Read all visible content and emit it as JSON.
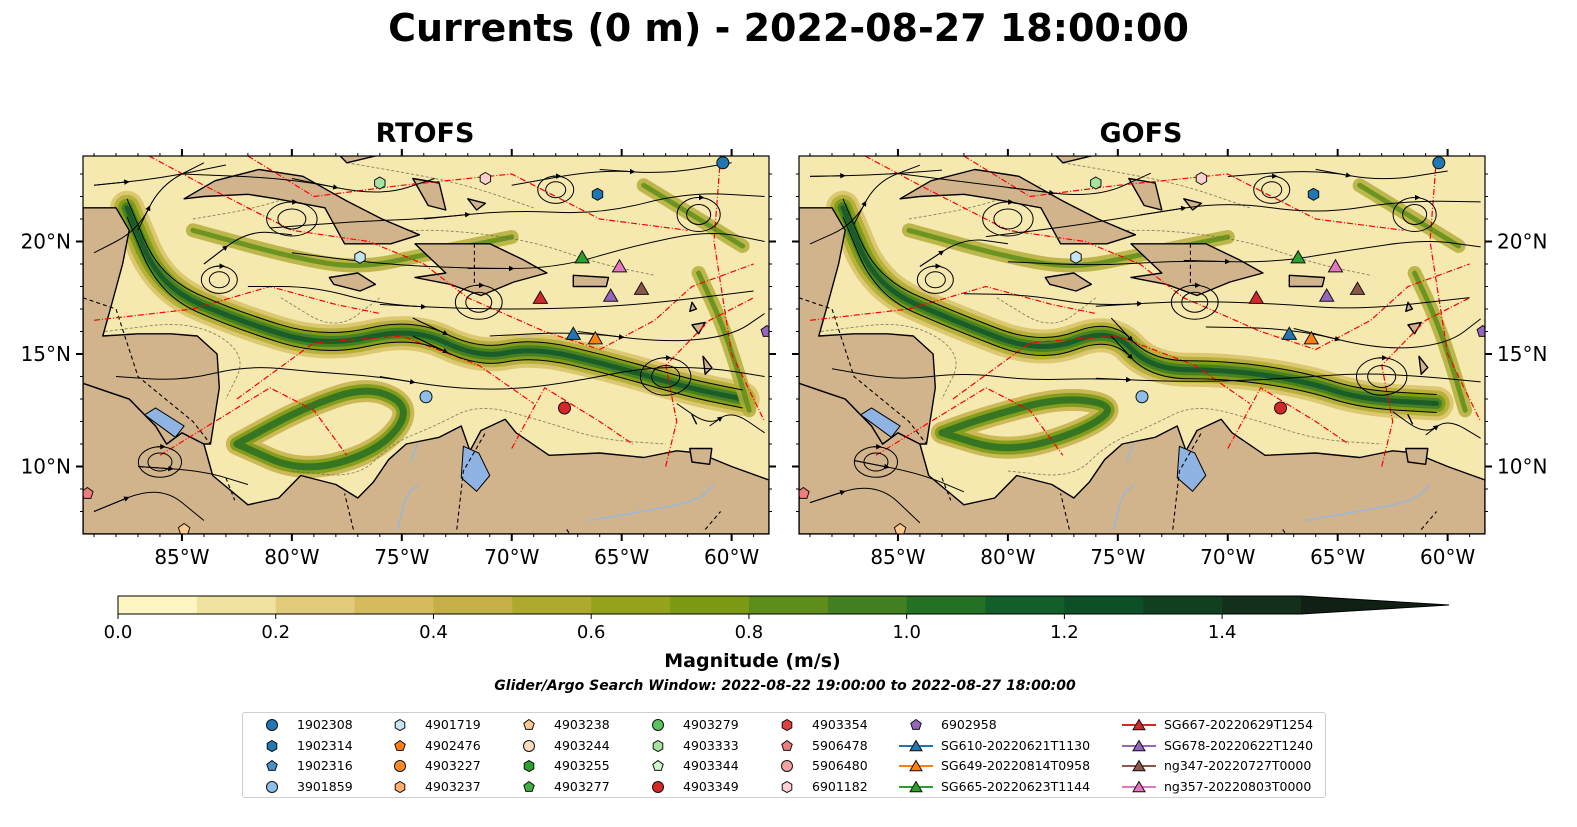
{
  "title": "Currents (0 m) - 2022-08-27 18:00:00",
  "panels": [
    {
      "title": "RTOFS"
    },
    {
      "title": "GOFS"
    }
  ],
  "axes": {
    "lon_ticks": [
      "85°W",
      "80°W",
      "75°W",
      "70°W",
      "65°W",
      "60°W"
    ],
    "lon_values": [
      -85,
      -80,
      -75,
      -70,
      -65,
      -60
    ],
    "lat_ticks": [
      "20°N",
      "15°N",
      "10°N"
    ],
    "lat_values": [
      20,
      15,
      10
    ],
    "lon_range": [
      -89.5,
      -58.3
    ],
    "lat_range": [
      7,
      23.8
    ]
  },
  "colorbar": {
    "label": "Magnitude (m/s)",
    "tick_labels": [
      "0.0",
      "0.2",
      "0.4",
      "0.6",
      "0.8",
      "1.0",
      "1.2",
      "1.4"
    ],
    "min": 0,
    "max": 1.5,
    "step": 0.1,
    "extend": "max",
    "colors": [
      "#fdf6c3",
      "#f1e2a0",
      "#e2cc7c",
      "#d5bb5c",
      "#c4b046",
      "#aeaa2e",
      "#95a31c",
      "#7c9a14",
      "#5e8e1a",
      "#427f20",
      "#247024",
      "#125f2a",
      "#0d4f26",
      "#10401f",
      "#12301a",
      "#112015"
    ]
  },
  "search_window": "Glider/Argo Search Window: 2022-08-22 19:00:00 to 2022-08-27 18:00:00",
  "legend": [
    {
      "label": "1902308",
      "marker": "circle",
      "color": "#1f77b4"
    },
    {
      "label": "1902314",
      "marker": "hexagon",
      "color": "#1f77b4"
    },
    {
      "label": "1902316",
      "marker": "pentagon",
      "color": "#4a90c8"
    },
    {
      "label": "3901859",
      "marker": "circle",
      "color": "#8fbfe8"
    },
    {
      "label": "4901719",
      "marker": "hexagon",
      "color": "#c6e4f7"
    },
    {
      "label": "4902476",
      "marker": "pentagon",
      "color": "#ff7f0e"
    },
    {
      "label": "4903227",
      "marker": "circle",
      "color": "#ff8c29"
    },
    {
      "label": "4903237",
      "marker": "hexagon",
      "color": "#ffb070"
    },
    {
      "label": "4903238",
      "marker": "pentagon",
      "color": "#ffc890"
    },
    {
      "label": "4903244",
      "marker": "circle",
      "color": "#ffdcc0"
    },
    {
      "label": "4903255",
      "marker": "hexagon",
      "color": "#2ca02c"
    },
    {
      "label": "4903277",
      "marker": "pentagon",
      "color": "#3cb043"
    },
    {
      "label": "4903279",
      "marker": "circle",
      "color": "#5bc35b"
    },
    {
      "label": "4903333",
      "marker": "hexagon",
      "color": "#a6e3a1"
    },
    {
      "label": "4903344",
      "marker": "pentagon",
      "color": "#d4f3cf"
    },
    {
      "label": "4903349",
      "marker": "circle",
      "color": "#d62728"
    },
    {
      "label": "4903354",
      "marker": "hexagon",
      "color": "#e0403f"
    },
    {
      "label": "5906478",
      "marker": "pentagon",
      "color": "#f07d7d"
    },
    {
      "label": "5906480",
      "marker": "circle",
      "color": "#f4a3a3"
    },
    {
      "label": "6901182",
      "marker": "hexagon",
      "color": "#ffd0d0"
    },
    {
      "label": "6902958",
      "marker": "pentagon",
      "color": "#9467bd"
    },
    {
      "label": "SG610-20220621T1130",
      "marker": "triangle",
      "color": "#1f77b4"
    },
    {
      "label": "SG649-20220814T0958",
      "marker": "triangle",
      "color": "#ff7f0e"
    },
    {
      "label": "SG665-20220623T1144",
      "marker": "triangle",
      "color": "#2ca02c"
    },
    {
      "label": "SG667-20220629T1254",
      "marker": "triangle",
      "color": "#d62728"
    },
    {
      "label": "SG678-20220622T1240",
      "marker": "triangle",
      "color": "#9467bd"
    },
    {
      "label": "ng347-20220727T0000",
      "marker": "triangle",
      "color": "#8c564b"
    },
    {
      "label": "ng357-20220803T0000",
      "marker": "triangle",
      "color": "#e377c2"
    }
  ],
  "chart_data": [
    {
      "type": "map",
      "title": "RTOFS",
      "variable": "surface current magnitude",
      "units": "m/s",
      "lon_range": [
        -89.5,
        -58.3
      ],
      "lat_range": [
        7,
        23.8
      ],
      "jet_axis": [
        [
          -87.5,
          21.5
        ],
        [
          -86,
          18
        ],
        [
          -82.5,
          16.5
        ],
        [
          -78.5,
          15.3
        ],
        [
          -74.5,
          16.2
        ],
        [
          -71.5,
          14.8
        ],
        [
          -69,
          15.3
        ],
        [
          -65.5,
          14.5
        ],
        [
          -62,
          13.5
        ],
        [
          -59.5,
          13
        ]
      ],
      "eddy_jet": [
        [
          -82.5,
          11
        ],
        [
          -79.5,
          9.7
        ],
        [
          -76,
          10.7
        ],
        [
          -74.5,
          12.6
        ],
        [
          -76.5,
          13.6
        ],
        [
          -79.5,
          12.6
        ]
      ],
      "platforms": [
        {
          "id": "1902308",
          "lon": -60.4,
          "lat": 23.5
        },
        {
          "id": "1902314",
          "lon": -66.1,
          "lat": 22.1
        },
        {
          "id": "4903333",
          "lon": -76.0,
          "lat": 22.6
        },
        {
          "id": "6901182",
          "lon": -71.2,
          "lat": 22.8
        },
        {
          "id": "4901719",
          "lon": -76.9,
          "lat": 19.3
        },
        {
          "id": "3901859",
          "lon": -73.9,
          "lat": 13.1
        },
        {
          "id": "4903349",
          "lon": -67.6,
          "lat": 12.6
        },
        {
          "id": "6902958",
          "lon": -58.4,
          "lat": 16.0
        },
        {
          "id": "SG665-20220623T1144",
          "lon": -66.8,
          "lat": 19.3
        },
        {
          "id": "ng357-20220803T0000",
          "lon": -65.1,
          "lat": 18.9
        },
        {
          "id": "SG678-20220622T1240",
          "lon": -65.5,
          "lat": 17.6
        },
        {
          "id": "ng347-20220727T0000",
          "lon": -64.1,
          "lat": 17.9
        },
        {
          "id": "SG667-20220629T1254",
          "lon": -68.7,
          "lat": 17.5
        },
        {
          "id": "SG610-20220621T1130",
          "lon": -67.2,
          "lat": 15.9
        },
        {
          "id": "SG649-20220814T0958",
          "lon": -66.2,
          "lat": 15.7
        },
        {
          "id": "4903238",
          "lon": -84.9,
          "lat": 7.2
        },
        {
          "id": "5906478",
          "lon": -89.3,
          "lat": 8.8
        }
      ]
    },
    {
      "type": "map",
      "title": "GOFS",
      "variable": "surface current magnitude",
      "units": "m/s",
      "lon_range": [
        -89.5,
        -58.3
      ],
      "lat_range": [
        7,
        23.8
      ],
      "jet_axis": [
        [
          -87.5,
          21.5
        ],
        [
          -86,
          18
        ],
        [
          -82.5,
          16.5
        ],
        [
          -78.5,
          15
        ],
        [
          -75.3,
          16.2
        ],
        [
          -73.5,
          14.3
        ],
        [
          -70,
          14.3
        ],
        [
          -66.5,
          13.8
        ],
        [
          -64,
          13
        ],
        [
          -60.5,
          12.8
        ]
      ],
      "eddy_jet": [
        [
          -83,
          11.5
        ],
        [
          -80,
          10.6
        ],
        [
          -76.5,
          11.6
        ],
        [
          -75,
          12.7
        ],
        [
          -77.5,
          13.1
        ],
        [
          -81,
          12.2
        ]
      ],
      "platforms": [
        {
          "id": "1902308",
          "lon": -60.4,
          "lat": 23.5
        },
        {
          "id": "1902314",
          "lon": -66.1,
          "lat": 22.1
        },
        {
          "id": "4903333",
          "lon": -76.0,
          "lat": 22.6
        },
        {
          "id": "6901182",
          "lon": -71.2,
          "lat": 22.8
        },
        {
          "id": "4901719",
          "lon": -76.9,
          "lat": 19.3
        },
        {
          "id": "3901859",
          "lon": -73.9,
          "lat": 13.1
        },
        {
          "id": "4903349",
          "lon": -67.6,
          "lat": 12.6
        },
        {
          "id": "6902958",
          "lon": -58.4,
          "lat": 16.0
        },
        {
          "id": "SG665-20220623T1144",
          "lon": -66.8,
          "lat": 19.3
        },
        {
          "id": "ng357-20220803T0000",
          "lon": -65.1,
          "lat": 18.9
        },
        {
          "id": "SG678-20220622T1240",
          "lon": -65.5,
          "lat": 17.6
        },
        {
          "id": "ng347-20220727T0000",
          "lon": -64.1,
          "lat": 17.9
        },
        {
          "id": "SG667-20220629T1254",
          "lon": -68.7,
          "lat": 17.5
        },
        {
          "id": "SG610-20220621T1130",
          "lon": -67.2,
          "lat": 15.9
        },
        {
          "id": "SG649-20220814T0958",
          "lon": -66.2,
          "lat": 15.7
        },
        {
          "id": "4903238",
          "lon": -84.9,
          "lat": 7.2
        },
        {
          "id": "5906478",
          "lon": -89.3,
          "lat": 8.8
        }
      ]
    }
  ]
}
